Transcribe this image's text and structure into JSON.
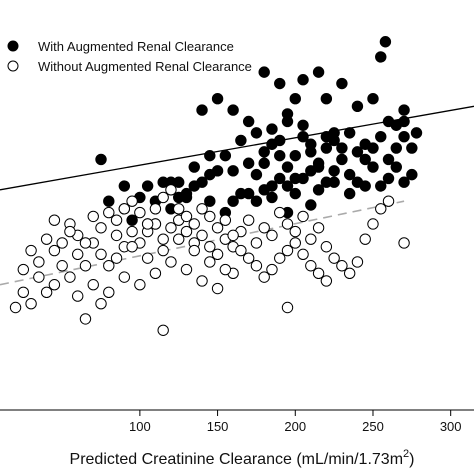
{
  "chart_data": {
    "type": "scatter",
    "title": "",
    "xlabel": "Predicted Creatinine Clearance (mL/min/1.73m",
    "xlabel_superscript": "2",
    "xlabel_suffix": ")",
    "ylabel": "",
    "xlim": [
      10,
      315
    ],
    "ylim": [
      0,
      108
    ],
    "x_ticks": [
      100,
      150,
      200,
      250,
      300
    ],
    "grid": false,
    "legend_position": "top-left",
    "series": [
      {
        "name": "With Augmented Renal Clearance",
        "marker": "filled-circle",
        "color": "#000000",
        "points": [
          [
            75,
            66
          ],
          [
            80,
            55
          ],
          [
            90,
            53
          ],
          [
            95,
            50
          ],
          [
            105,
            49
          ],
          [
            110,
            49
          ],
          [
            120,
            53
          ],
          [
            125,
            56
          ],
          [
            130,
            56
          ],
          [
            135,
            59
          ],
          [
            140,
            60
          ],
          [
            145,
            55
          ],
          [
            145,
            62
          ],
          [
            150,
            63
          ],
          [
            155,
            52
          ],
          [
            160,
            55
          ],
          [
            165,
            57
          ],
          [
            170,
            57
          ],
          [
            175,
            55
          ],
          [
            175,
            62
          ],
          [
            180,
            58
          ],
          [
            180,
            65
          ],
          [
            185,
            56
          ],
          [
            185,
            59
          ],
          [
            190,
            61
          ],
          [
            190,
            67
          ],
          [
            195,
            52
          ],
          [
            195,
            59
          ],
          [
            195,
            64
          ],
          [
            200,
            57
          ],
          [
            200,
            61
          ],
          [
            200,
            67
          ],
          [
            205,
            61
          ],
          [
            210,
            54
          ],
          [
            210,
            63
          ],
          [
            210,
            70
          ],
          [
            215,
            58
          ],
          [
            215,
            65
          ],
          [
            220,
            60
          ],
          [
            220,
            69
          ],
          [
            225,
            63
          ],
          [
            225,
            71
          ],
          [
            230,
            66
          ],
          [
            235,
            62
          ],
          [
            240,
            60
          ],
          [
            245,
            66
          ],
          [
            250,
            64
          ],
          [
            255,
            72
          ],
          [
            260,
            66
          ],
          [
            265,
            69
          ],
          [
            270,
            72
          ],
          [
            275,
            69
          ],
          [
            180,
            89
          ],
          [
            190,
            86
          ],
          [
            200,
            82
          ],
          [
            150,
            82
          ],
          [
            160,
            79
          ],
          [
            170,
            76
          ],
          [
            140,
            79
          ],
          [
            220,
            82
          ],
          [
            230,
            86
          ],
          [
            240,
            80
          ],
          [
            250,
            82
          ],
          [
            260,
            76
          ],
          [
            270,
            76
          ],
          [
            255,
            93
          ],
          [
            258,
            97
          ],
          [
            215,
            89
          ],
          [
            225,
            73
          ],
          [
            235,
            73
          ],
          [
            245,
            70
          ],
          [
            205,
            72
          ],
          [
            195,
            76
          ],
          [
            185,
            70
          ],
          [
            175,
            73
          ],
          [
            165,
            71
          ],
          [
            155,
            67
          ],
          [
            145,
            67
          ],
          [
            135,
            64
          ],
          [
            125,
            60
          ],
          [
            115,
            60
          ],
          [
            105,
            59
          ],
          [
            100,
            56
          ],
          [
            110,
            55
          ],
          [
            120,
            60
          ],
          [
            130,
            57
          ],
          [
            160,
            63
          ],
          [
            170,
            65
          ],
          [
            180,
            68
          ],
          [
            190,
            71
          ],
          [
            210,
            68
          ],
          [
            220,
            72
          ],
          [
            230,
            69
          ],
          [
            240,
            68
          ],
          [
            250,
            69
          ],
          [
            255,
            59
          ],
          [
            260,
            61
          ],
          [
            265,
            64
          ],
          [
            270,
            60
          ],
          [
            275,
            62
          ],
          [
            265,
            75
          ],
          [
            270,
            79
          ],
          [
            278,
            73
          ],
          [
            215,
            64
          ],
          [
            225,
            60
          ],
          [
            235,
            57
          ],
          [
            245,
            59
          ],
          [
            185,
            74
          ],
          [
            195,
            78
          ],
          [
            205,
            75
          ],
          [
            90,
            59
          ],
          [
            205,
            87
          ]
        ]
      },
      {
        "name": "Without Augmented Renal Clearance",
        "marker": "open-circle",
        "color": "#000000",
        "points": [
          [
            12,
            22
          ],
          [
            20,
            27
          ],
          [
            25,
            31
          ],
          [
            30,
            28
          ],
          [
            35,
            35
          ],
          [
            40,
            31
          ],
          [
            45,
            33
          ],
          [
            50,
            38
          ],
          [
            55,
            35
          ],
          [
            60,
            41
          ],
          [
            65,
            38
          ],
          [
            70,
            44
          ],
          [
            75,
            41
          ],
          [
            80,
            38
          ],
          [
            85,
            46
          ],
          [
            90,
            43
          ],
          [
            95,
            47
          ],
          [
            100,
            44
          ],
          [
            105,
            47
          ],
          [
            110,
            49
          ],
          [
            115,
            45
          ],
          [
            120,
            48
          ],
          [
            125,
            50
          ],
          [
            130,
            47
          ],
          [
            135,
            44
          ],
          [
            140,
            46
          ],
          [
            145,
            43
          ],
          [
            150,
            41
          ],
          [
            155,
            45
          ],
          [
            160,
            43
          ],
          [
            165,
            47
          ],
          [
            170,
            50
          ],
          [
            175,
            44
          ],
          [
            180,
            48
          ],
          [
            185,
            46
          ],
          [
            190,
            52
          ],
          [
            195,
            49
          ],
          [
            200,
            47
          ],
          [
            205,
            51
          ],
          [
            210,
            45
          ],
          [
            215,
            48
          ],
          [
            220,
            43
          ],
          [
            225,
            40
          ],
          [
            230,
            38
          ],
          [
            235,
            36
          ],
          [
            240,
            39
          ],
          [
            245,
            45
          ],
          [
            250,
            49
          ],
          [
            255,
            53
          ],
          [
            260,
            55
          ],
          [
            270,
            44
          ],
          [
            25,
            37
          ],
          [
            30,
            42
          ],
          [
            35,
            39
          ],
          [
            40,
            45
          ],
          [
            45,
            42
          ],
          [
            50,
            44
          ],
          [
            55,
            49
          ],
          [
            60,
            46
          ],
          [
            65,
            44
          ],
          [
            70,
            51
          ],
          [
            75,
            48
          ],
          [
            80,
            52
          ],
          [
            85,
            50
          ],
          [
            90,
            53
          ],
          [
            95,
            55
          ],
          [
            100,
            52
          ],
          [
            105,
            49
          ],
          [
            110,
            53
          ],
          [
            115,
            56
          ],
          [
            120,
            58
          ],
          [
            125,
            53
          ],
          [
            130,
            51
          ],
          [
            135,
            49
          ],
          [
            140,
            53
          ],
          [
            145,
            51
          ],
          [
            150,
            48
          ],
          [
            155,
            50
          ],
          [
            160,
            46
          ],
          [
            165,
            42
          ],
          [
            170,
            40
          ],
          [
            175,
            38
          ],
          [
            180,
            35
          ],
          [
            185,
            37
          ],
          [
            190,
            40
          ],
          [
            195,
            42
          ],
          [
            200,
            44
          ],
          [
            205,
            41
          ],
          [
            210,
            38
          ],
          [
            215,
            36
          ],
          [
            220,
            34
          ],
          [
            60,
            30
          ],
          [
            70,
            33
          ],
          [
            80,
            31
          ],
          [
            90,
            35
          ],
          [
            100,
            33
          ],
          [
            110,
            36
          ],
          [
            120,
            39
          ],
          [
            130,
            37
          ],
          [
            140,
            34
          ],
          [
            150,
            32
          ],
          [
            160,
            36
          ],
          [
            115,
            21
          ],
          [
            195,
            27
          ],
          [
            65,
            24
          ],
          [
            75,
            28
          ],
          [
            85,
            40
          ],
          [
            95,
            43
          ],
          [
            105,
            40
          ],
          [
            115,
            42
          ],
          [
            125,
            45
          ],
          [
            135,
            42
          ],
          [
            145,
            39
          ],
          [
            155,
            37
          ],
          [
            45,
            50
          ],
          [
            55,
            47
          ]
        ]
      }
    ],
    "trendlines": [
      {
        "series": "With Augmented Renal Clearance",
        "style": "solid",
        "color": "#000000",
        "x": [
          10,
          315
        ],
        "y": [
          58,
          80
        ]
      },
      {
        "series": "Without Augmented Renal Clearance",
        "style": "dashed",
        "color": "#aaaaaa",
        "x": [
          10,
          270
        ],
        "y": [
          33,
          55
        ]
      }
    ]
  }
}
